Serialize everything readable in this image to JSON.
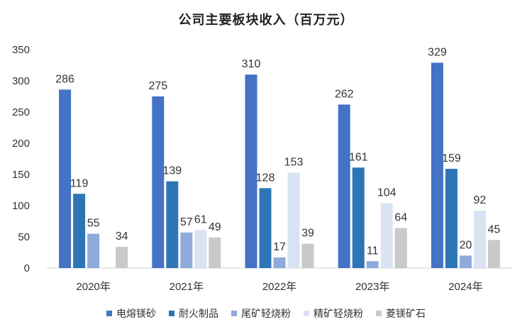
{
  "chart_data": {
    "type": "bar",
    "title": "公司主要板块收入（百万元）",
    "categories": [
      "2020年",
      "2021年",
      "2022年",
      "2023年",
      "2024年"
    ],
    "series": [
      {
        "name": "电熔镁砂",
        "color": "#4472C4",
        "values": [
          286,
          275,
          310,
          262,
          329
        ]
      },
      {
        "name": "耐火制品",
        "color": "#2E75B6",
        "values": [
          119,
          139,
          128,
          161,
          159
        ]
      },
      {
        "name": "尾矿轻烧粉",
        "color": "#8FAADC",
        "values": [
          55,
          57,
          17,
          11,
          20
        ]
      },
      {
        "name": "精矿轻烧粉",
        "color": "#DAE3F3",
        "values": [
          null,
          61,
          153,
          104,
          92
        ]
      },
      {
        "name": "菱镁矿石",
        "color": "#C9C9C9",
        "values": [
          34,
          49,
          39,
          64,
          45
        ]
      }
    ],
    "ylim": [
      0,
      350
    ],
    "yticks": [
      0,
      50,
      100,
      150,
      200,
      250,
      300,
      350
    ],
    "grid": false,
    "legend": "bottom"
  }
}
